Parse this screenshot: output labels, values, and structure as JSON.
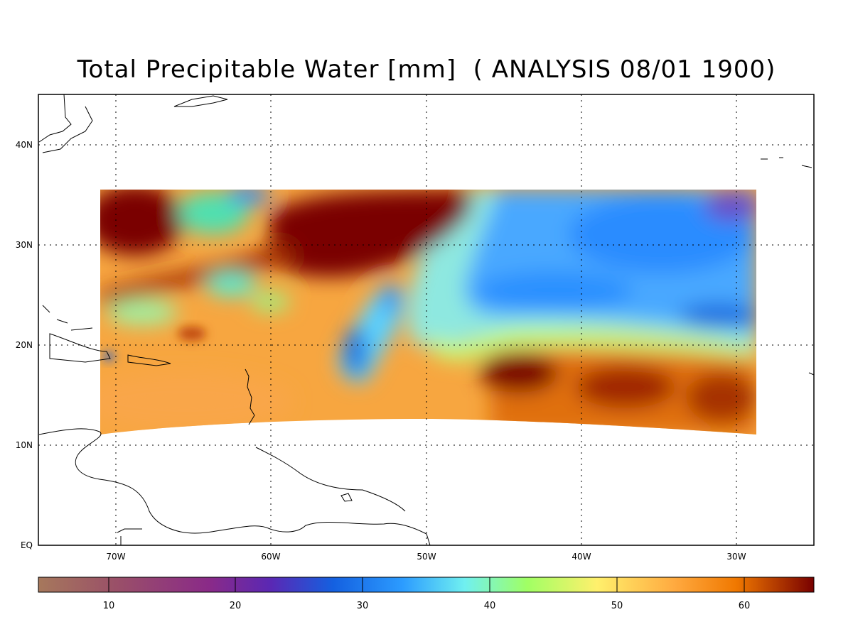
{
  "title": "Total Precipitable Water [mm]  ( ANALYSIS 08/01 1900)",
  "map": {
    "lon_labels": [
      "70W",
      "60W",
      "50W",
      "40W",
      "30W"
    ],
    "lat_labels": [
      "40N",
      "30N",
      "20N",
      "10N",
      "EQ"
    ],
    "lon_range": [
      -75,
      -25
    ],
    "lat_range": [
      0,
      45
    ],
    "grid": "dotted"
  },
  "colorbar": {
    "tick_labels": [
      "10",
      "20",
      "30",
      "40",
      "50",
      "60"
    ],
    "range": [
      5,
      66
    ],
    "colors": [
      "#a6785c",
      "#8c3c8c",
      "#6a0a8c",
      "#0a78f0",
      "#76ffe6",
      "#9aff60",
      "#ffec64",
      "#ff9a28",
      "#e06400",
      "#7a0000"
    ]
  }
}
